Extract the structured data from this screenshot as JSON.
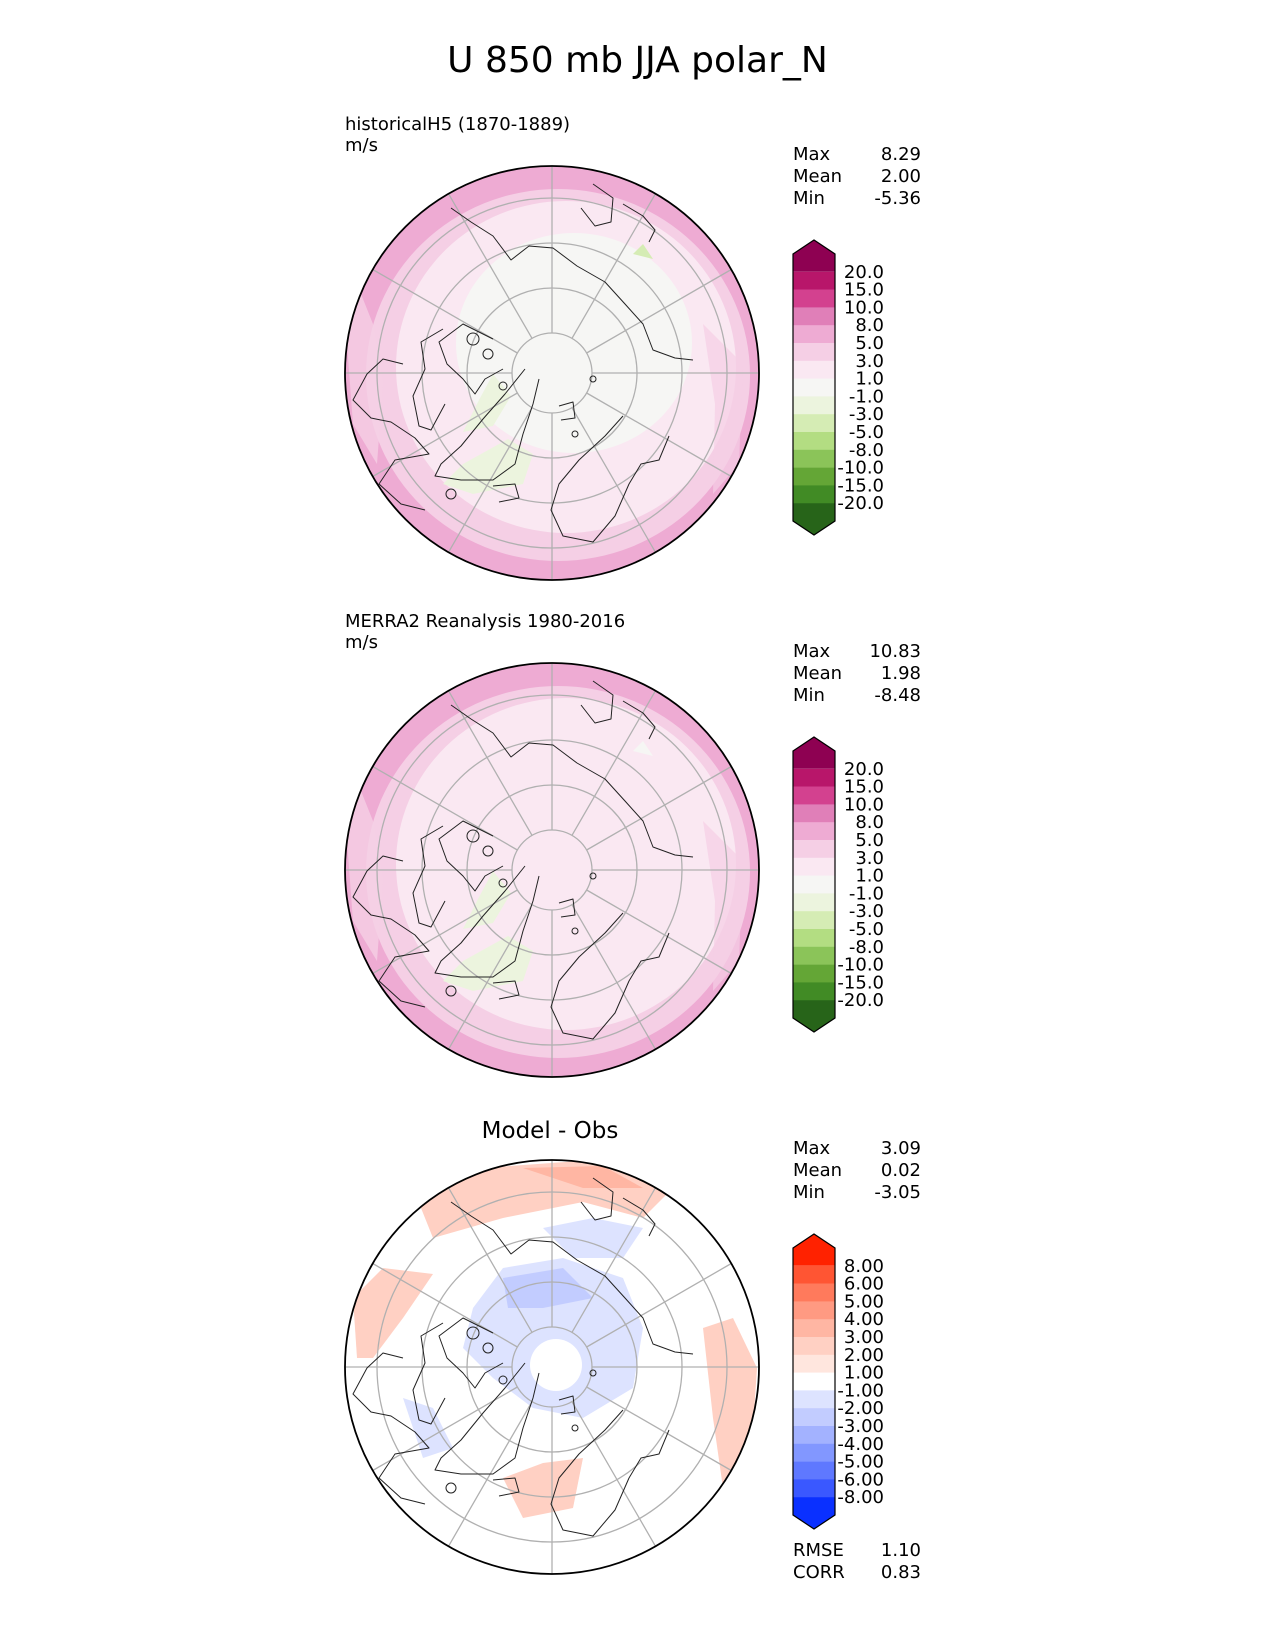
{
  "figure": {
    "title": "U 850 mb JJA polar_N"
  },
  "panels": [
    {
      "id": "model",
      "title": "historicalH5 (1870-1889)",
      "units": "m/s",
      "stats": [
        {
          "label": "Max",
          "value": "8.29"
        },
        {
          "label": "Mean",
          "value": "2.00"
        },
        {
          "label": "Min",
          "value": "-5.36"
        }
      ],
      "colorbar": {
        "ticks": [
          "20.0",
          "15.0",
          "10.0",
          "8.0",
          "5.0",
          "3.0",
          "1.0",
          "-1.0",
          "-3.0",
          "-5.0",
          "-8.0",
          "-10.0",
          "-15.0",
          "-20.0"
        ],
        "colors": [
          "#8e0152",
          "#b8166a",
          "#d3418f",
          "#e07fb8",
          "#eeabd3",
          "#f5cfe5",
          "#fae8f2",
          "#f6f6f4",
          "#ecf4de",
          "#d5ecb4",
          "#b3dd82",
          "#8bc459",
          "#64a636",
          "#418b25",
          "#276419"
        ]
      },
      "shading": {
        "outer": "#eeabd3",
        "mid": "#f5cfe5",
        "inner": "#fae8f2",
        "pole": "#f6f6f4",
        "patch": "#ecf4de",
        "patch_dark": "#d5ecb4"
      }
    },
    {
      "id": "obs",
      "title": "MERRA2 Reanalysis 1980-2016",
      "units": "m/s",
      "stats": [
        {
          "label": "Max",
          "value": "10.83"
        },
        {
          "label": "Mean",
          "value": "1.98"
        },
        {
          "label": "Min",
          "value": "-8.48"
        }
      ],
      "colorbar": {
        "ticks": [
          "20.0",
          "15.0",
          "10.0",
          "8.0",
          "5.0",
          "3.0",
          "1.0",
          "-1.0",
          "-3.0",
          "-5.0",
          "-8.0",
          "-10.0",
          "-15.0",
          "-20.0"
        ],
        "colors": [
          "#8e0152",
          "#b8166a",
          "#d3418f",
          "#e07fb8",
          "#eeabd3",
          "#f5cfe5",
          "#fae8f2",
          "#f6f6f4",
          "#ecf4de",
          "#d5ecb4",
          "#b3dd82",
          "#8bc459",
          "#64a636",
          "#418b25",
          "#276419"
        ]
      },
      "shading": {
        "outer": "#eeabd3",
        "mid": "#f5cfe5",
        "inner": "#fae8f2",
        "pole": "#fae8f2",
        "patch": "#ecf4de",
        "patch_dark": "#f6f6f4"
      }
    },
    {
      "id": "diff",
      "title": "Model - Obs",
      "stats": [
        {
          "label": "Max",
          "value": "3.09"
        },
        {
          "label": "Mean",
          "value": "0.02"
        },
        {
          "label": "Min",
          "value": "-3.05"
        }
      ],
      "extra_stats": [
        {
          "label": "RMSE",
          "value": "1.10"
        },
        {
          "label": "CORR",
          "value": "0.83"
        }
      ],
      "colorbar": {
        "ticks": [
          "8.00",
          "6.00",
          "5.00",
          "4.00",
          "3.00",
          "2.00",
          "1.00",
          "-1.00",
          "-2.00",
          "-3.00",
          "-4.00",
          "-5.00",
          "-6.00",
          "-8.00"
        ],
        "colors": [
          "#ff2200",
          "#ff5533",
          "#ff7a5c",
          "#ff9a82",
          "#ffb6a3",
          "#ffd0c3",
          "#ffe6de",
          "#ffffff",
          "#dde3ff",
          "#c2ccff",
          "#a3b2ff",
          "#8297ff",
          "#5f78ff",
          "#3a58ff",
          "#0a30ff"
        ]
      },
      "shading": {
        "warm": "#ffd0c3",
        "warm_dark": "#ffb6a3",
        "cool": "#dde3ff",
        "cool_dark": "#c2ccff"
      }
    }
  ]
}
